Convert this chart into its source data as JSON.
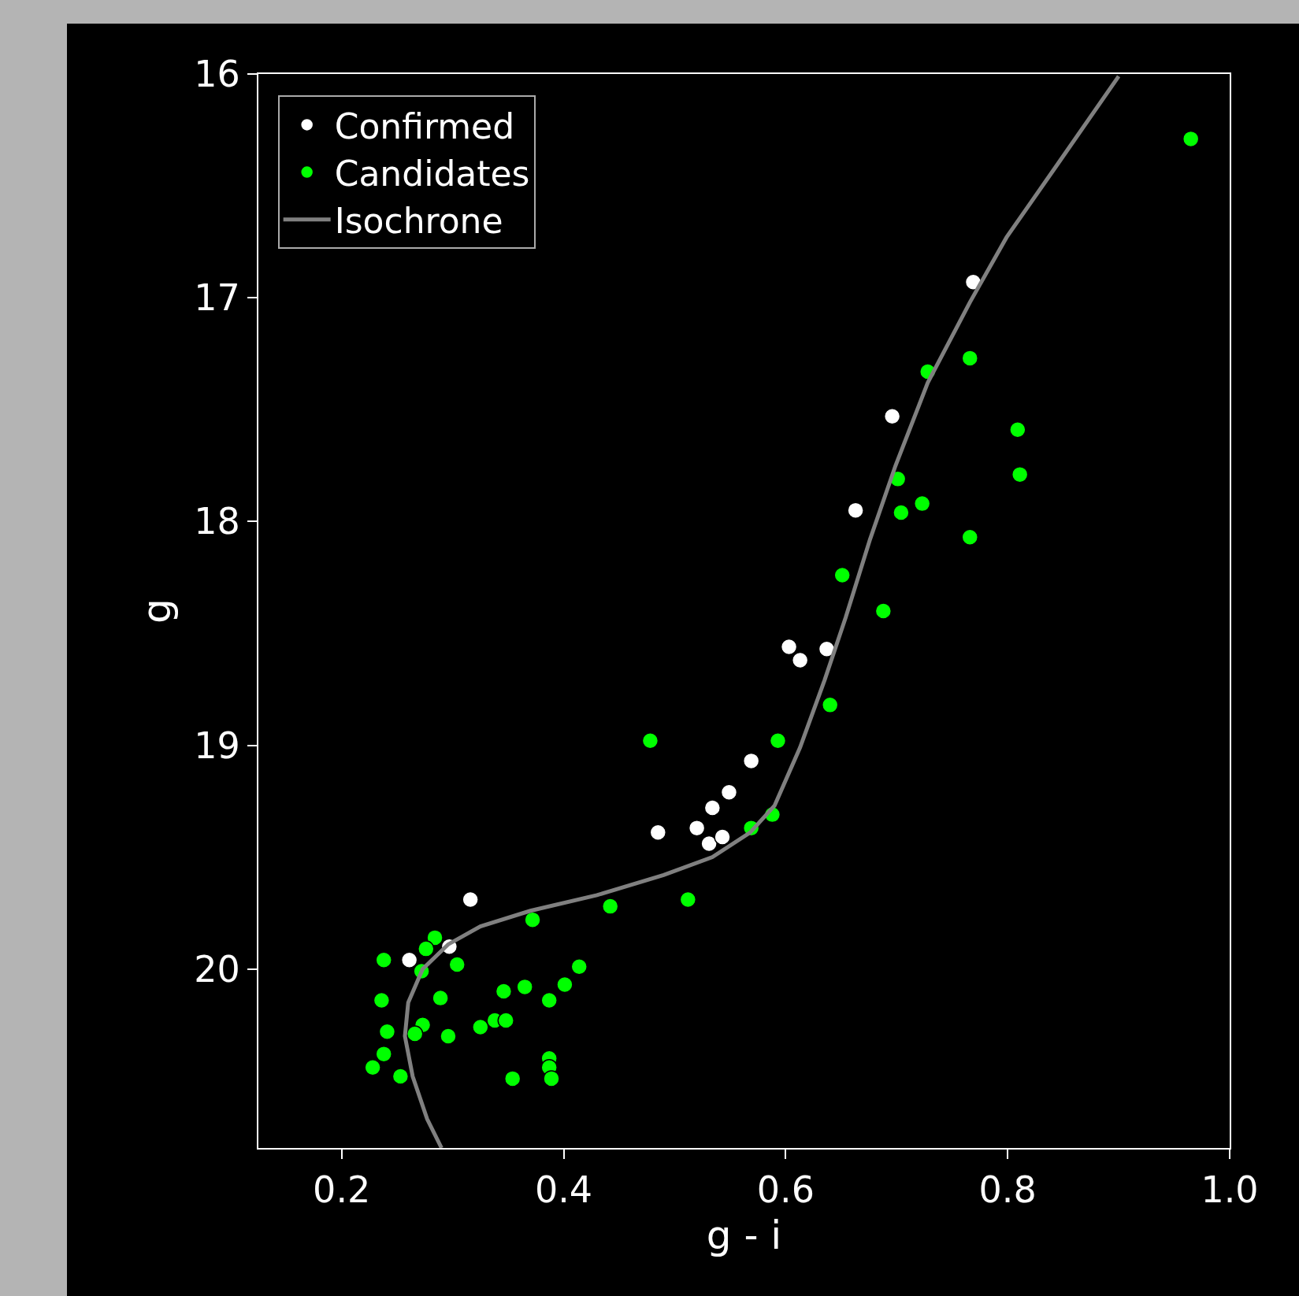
{
  "chart_data": {
    "type": "scatter",
    "xlabel": "g - i",
    "ylabel": "g",
    "xlim": [
      0.125,
      1.0
    ],
    "ylim": [
      20.8,
      16
    ],
    "xticks": [
      0.2,
      0.4,
      0.6,
      0.8,
      {
        "value": 1.0,
        "label": "1.0"
      }
    ],
    "yticks": [
      16,
      17,
      18,
      19,
      20
    ],
    "grid": false,
    "legend": "top left",
    "series": [
      {
        "name": "Confirmed",
        "color": "#ffffff",
        "marker": "circle",
        "x": [
          0.769,
          0.696,
          0.663,
          0.603,
          0.613,
          0.637,
          0.569,
          0.549,
          0.534,
          0.52,
          0.485,
          0.531,
          0.543,
          0.316,
          0.261,
          0.297
        ],
        "values": [
          16.93,
          17.53,
          17.95,
          18.56,
          18.62,
          18.57,
          19.07,
          19.21,
          19.28,
          19.37,
          19.39,
          19.44,
          19.41,
          19.69,
          19.96,
          19.9
        ]
      },
      {
        "name": "Candidates",
        "color": "#00ff00",
        "marker": "circle",
        "x": [
          0.965,
          0.766,
          0.728,
          0.809,
          0.811,
          0.701,
          0.704,
          0.723,
          0.766,
          0.651,
          0.688,
          0.64,
          0.478,
          0.593,
          0.588,
          0.569,
          0.512,
          0.442,
          0.372,
          0.284,
          0.276,
          0.238,
          0.304,
          0.272,
          0.414,
          0.401,
          0.365,
          0.346,
          0.289,
          0.387,
          0.236,
          0.338,
          0.348,
          0.325,
          0.273,
          0.241,
          0.266,
          0.296,
          0.238,
          0.387,
          0.387,
          0.228,
          0.253,
          0.354,
          0.389
        ],
        "values": [
          16.29,
          17.27,
          17.33,
          17.59,
          17.79,
          17.81,
          17.96,
          17.92,
          18.07,
          18.24,
          18.4,
          18.82,
          18.98,
          18.98,
          19.31,
          19.37,
          19.69,
          19.72,
          19.78,
          19.86,
          19.91,
          19.96,
          19.98,
          20.01,
          19.99,
          20.07,
          20.08,
          20.1,
          20.13,
          20.14,
          20.14,
          20.23,
          20.23,
          20.26,
          20.25,
          20.28,
          20.29,
          20.3,
          20.38,
          20.4,
          20.44,
          20.44,
          20.48,
          20.49,
          20.49
        ]
      },
      {
        "name": "Isochrone",
        "type": "line",
        "color": "#808080",
        "line_style": "solid",
        "marker": "none",
        "x": [
          0.9,
          0.844,
          0.799,
          0.766,
          0.728,
          0.699,
          0.676,
          0.654,
          0.635,
          0.613,
          0.59,
          0.568,
          0.534,
          0.49,
          0.43,
          0.37,
          0.325,
          0.296,
          0.273,
          0.26,
          0.257,
          0.264,
          0.277,
          0.29
        ],
        "values": [
          16.01,
          16.41,
          16.73,
          17.02,
          17.38,
          17.75,
          18.08,
          18.43,
          18.71,
          19.01,
          19.27,
          19.39,
          19.5,
          19.58,
          19.67,
          19.74,
          19.81,
          19.89,
          20.0,
          20.15,
          20.3,
          20.48,
          20.67,
          20.8
        ]
      }
    ]
  }
}
